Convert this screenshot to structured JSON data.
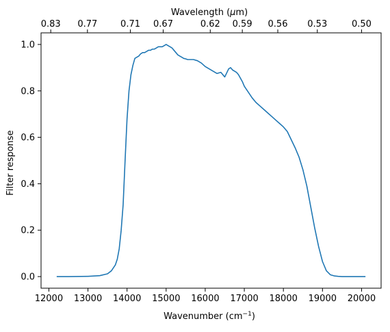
{
  "chart_data": {
    "type": "line",
    "xlabel": "Wavenumber (cm",
    "xlabel_sup": "−1",
    "xlabel_close": ")",
    "ylabel": "Filter response",
    "top_xlabel": "Wavelength (",
    "top_xlabel_mu": "μ",
    "top_xlabel_close": "m)",
    "xlim": [
      11800,
      20500
    ],
    "ylim": [
      -0.05,
      1.05
    ],
    "xticks": [
      12000,
      13000,
      14000,
      15000,
      16000,
      17000,
      18000,
      19000,
      20000
    ],
    "xtick_labels": [
      "12000",
      "13000",
      "14000",
      "15000",
      "16000",
      "17000",
      "18000",
      "19000",
      "20000"
    ],
    "yticks": [
      0.0,
      0.2,
      0.4,
      0.6,
      0.8,
      1.0
    ],
    "ytick_labels": [
      "0.0",
      "0.2",
      "0.4",
      "0.6",
      "0.8",
      "1.0"
    ],
    "top_ticks": [
      12048,
      12987,
      14085,
      14925,
      16129,
      16949,
      17857,
      18868,
      20000
    ],
    "top_tick_labels": [
      "0.83",
      "0.77",
      "0.71",
      "0.67",
      "0.62",
      "0.59",
      "0.56",
      "0.53",
      "0.50"
    ],
    "grid": false,
    "line_color": "#1f77b4",
    "series": [
      {
        "x": [
          12200,
          12500,
          13000,
          13300,
          13500,
          13600,
          13700,
          13750,
          13800,
          13850,
          13900,
          13950,
          14000,
          14050,
          14100,
          14150,
          14200,
          14250,
          14300,
          14350,
          14400,
          14450,
          14500,
          14550,
          14600,
          14650,
          14700,
          14750,
          14800,
          14850,
          14900,
          14950,
          15000,
          15050,
          15100,
          15150,
          15200,
          15250,
          15300,
          15350,
          15400,
          15450,
          15500,
          15550,
          15600,
          15650,
          15700,
          15800,
          15900,
          16000,
          16100,
          16200,
          16300,
          16400,
          16500,
          16600,
          16650,
          16700,
          16750,
          16800,
          16850,
          16900,
          16950,
          17000,
          17100,
          17200,
          17300,
          17400,
          17500,
          17600,
          17700,
          17800,
          17900,
          18000,
          18100,
          18200,
          18300,
          18400,
          18500,
          18600,
          18700,
          18800,
          18900,
          19000,
          19100,
          19200,
          19300,
          19400,
          19500,
          19600,
          19700,
          19800,
          19900,
          20000,
          20100
        ],
        "y": [
          0.0,
          0.0,
          0.001,
          0.004,
          0.012,
          0.025,
          0.05,
          0.075,
          0.12,
          0.2,
          0.31,
          0.5,
          0.68,
          0.8,
          0.87,
          0.91,
          0.94,
          0.945,
          0.95,
          0.96,
          0.965,
          0.965,
          0.97,
          0.975,
          0.975,
          0.98,
          0.98,
          0.985,
          0.99,
          0.99,
          0.99,
          0.995,
          1.0,
          0.995,
          0.99,
          0.985,
          0.975,
          0.965,
          0.955,
          0.95,
          0.945,
          0.94,
          0.938,
          0.935,
          0.935,
          0.935,
          0.935,
          0.93,
          0.92,
          0.905,
          0.895,
          0.885,
          0.875,
          0.88,
          0.86,
          0.895,
          0.9,
          0.89,
          0.885,
          0.88,
          0.87,
          0.855,
          0.84,
          0.82,
          0.795,
          0.77,
          0.75,
          0.735,
          0.72,
          0.705,
          0.69,
          0.675,
          0.66,
          0.645,
          0.625,
          0.59,
          0.555,
          0.515,
          0.46,
          0.39,
          0.3,
          0.21,
          0.13,
          0.065,
          0.025,
          0.008,
          0.003,
          0.001,
          0.0,
          0.0,
          0.0,
          0.0,
          0.0,
          0.0,
          0.0
        ]
      }
    ]
  }
}
